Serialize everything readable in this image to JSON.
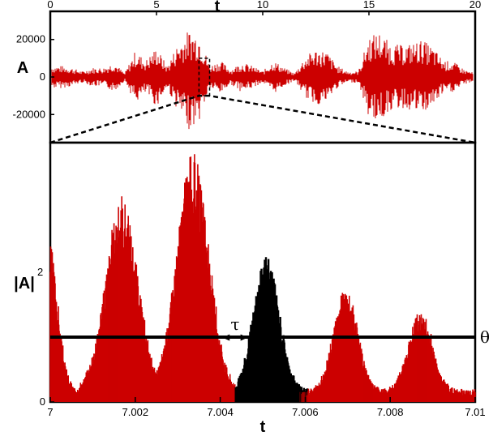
{
  "chart_data": [
    {
      "type": "line",
      "panel": "top",
      "xlabel": "t",
      "ylabel": "A",
      "xlim": [
        0,
        20
      ],
      "ylim": [
        -35000,
        35000
      ],
      "x_ticks": [
        0,
        5,
        10,
        15,
        20
      ],
      "x_tick_labels": [
        "0",
        "5",
        "10",
        "15",
        "20"
      ],
      "y_ticks": [
        20000,
        0,
        -20000
      ],
      "y_tick_labels": [
        "20000",
        "0",
        "-20000"
      ],
      "series_color": "#cc0000",
      "envelope": {
        "x": [
          0,
          0.5,
          1.0,
          1.5,
          2.0,
          2.5,
          3.0,
          3.5,
          4.0,
          4.5,
          5.0,
          5.5,
          6.0,
          6.5,
          7.0,
          7.5,
          8.0,
          8.5,
          9.0,
          9.5,
          10.0,
          10.5,
          11.0,
          11.5,
          12.0,
          12.5,
          13.0,
          13.5,
          14.0,
          14.5,
          15.0,
          15.5,
          16.0,
          16.5,
          17.0,
          17.5,
          18.0,
          18.5,
          19.0,
          19.5,
          20.0
        ],
        "upper": [
          6000,
          6000,
          5000,
          3000,
          5000,
          5000,
          8000,
          2000,
          14000,
          9000,
          16000,
          6000,
          18000,
          25000,
          24000,
          6000,
          9000,
          4000,
          8000,
          6000,
          3000,
          9000,
          5000,
          2000,
          11000,
          15000,
          14000,
          6000,
          3000,
          3000,
          22000,
          24000,
          18000,
          17000,
          18000,
          20000,
          16000,
          9000,
          8000,
          4000,
          2000
        ],
        "lower": [
          -6000,
          -6000,
          -5000,
          -3000,
          -5000,
          -5000,
          -8000,
          -2000,
          -14000,
          -9000,
          -16000,
          -6000,
          -18000,
          -28000,
          -24000,
          -6000,
          -9000,
          -4000,
          -8000,
          -6000,
          -3000,
          -9000,
          -5000,
          -2000,
          -11000,
          -15000,
          -14000,
          -6000,
          -3000,
          -3000,
          -22000,
          -24000,
          -18000,
          -17000,
          -18000,
          -20000,
          -16000,
          -9000,
          -8000,
          -4000,
          -2000
        ]
      },
      "zoom_box": {
        "x": [
          7.0,
          7.5
        ],
        "y": [
          -10000,
          10000
        ]
      }
    },
    {
      "type": "bar",
      "panel": "bottom",
      "xlabel": "t",
      "ylabel": "|A|",
      "ylabel_superscript": "2",
      "xlim": [
        7.0,
        7.01
      ],
      "x_ticks": [
        7.0,
        7.002,
        7.004,
        7.006,
        7.008,
        7.01
      ],
      "x_tick_labels": [
        "7",
        "7.002",
        "7.004",
        "7.006",
        "7.008",
        "7.01"
      ],
      "y_ticks": [
        0
      ],
      "y_tick_labels": [
        "0"
      ],
      "ylim": [
        0,
        1.0
      ],
      "threshold": {
        "label": "θ",
        "value": 0.25
      },
      "tau_label": "τ",
      "tau_span": [
        7.00405,
        7.00465
      ],
      "color_above": "#000000",
      "color_other": "#cc0000",
      "pulses": [
        {
          "center": 6.99995,
          "peak": 0.6,
          "width": 0.00022,
          "highlight": false
        },
        {
          "center": 7.00168,
          "peak": 0.75,
          "width": 0.00038,
          "highlight": false
        },
        {
          "center": 7.00335,
          "peak": 0.92,
          "width": 0.00038,
          "highlight": false
        },
        {
          "center": 7.00509,
          "peak": 0.53,
          "width": 0.0003,
          "highlight": true
        },
        {
          "center": 7.00695,
          "peak": 0.4,
          "width": 0.00028,
          "highlight": false
        },
        {
          "center": 7.00871,
          "peak": 0.32,
          "width": 0.00028,
          "highlight": false
        }
      ],
      "samples_per_unit": 10000
    }
  ]
}
